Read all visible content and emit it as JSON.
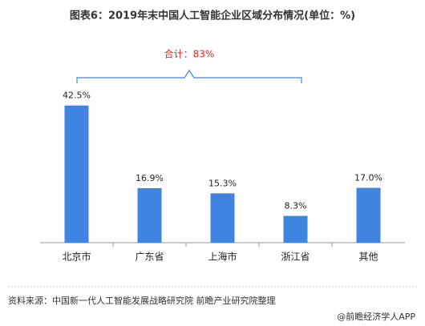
{
  "chart_data": {
    "type": "bar",
    "title": "图表6：2019年末中国人工智能企业区域分布情况(单位：%)",
    "categories": [
      "北京市",
      "广东省",
      "上海市",
      "浙江省",
      "其他"
    ],
    "values": [
      42.5,
      16.9,
      15.3,
      8.3,
      17.0
    ],
    "value_labels": [
      "42.5%",
      "16.9%",
      "15.3%",
      "8.3%",
      "17.0%"
    ],
    "color": "#3f85e0",
    "annotation": "合计：83%",
    "source": "资料来源：中国新一代人工智能发展战略研究院 前瞻产业研究院整理",
    "credit": "@前瞻经济学人APP"
  }
}
